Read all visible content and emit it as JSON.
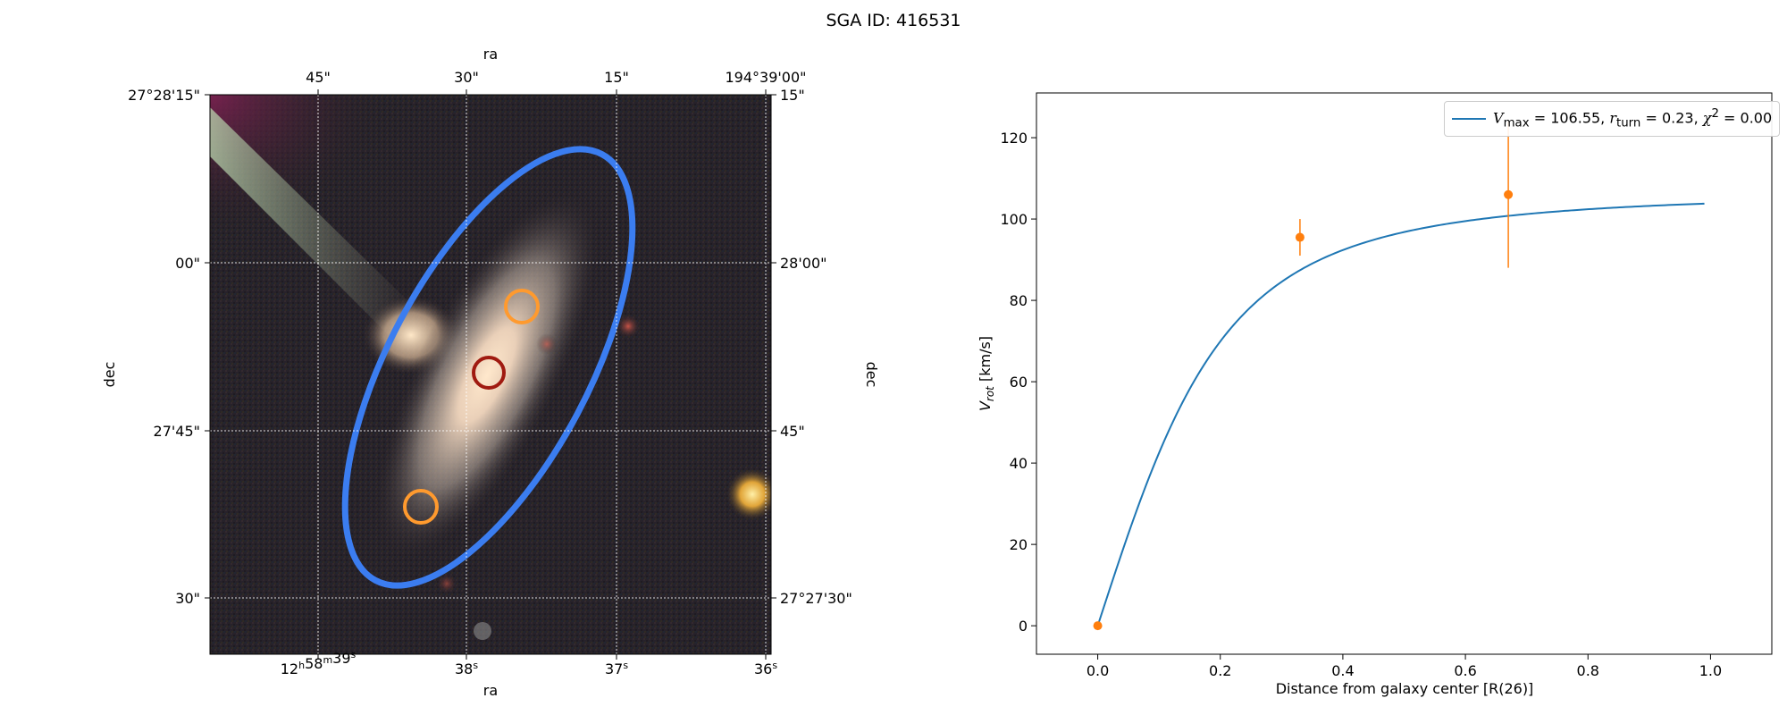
{
  "figure_title": "SGA ID: 416531",
  "colors": {
    "ellipse": "#3b7df0",
    "target_primary": "#a01a10",
    "target_secondary": "#ff9a2e",
    "curve": "#1f77b4",
    "points": "#ff7f0e"
  },
  "chart_data": [
    {
      "type": "image",
      "description_label": "sky cutout",
      "xlabel_top": "ra",
      "xlabel_bottom": "ra",
      "ylabel_left": "dec",
      "ylabel_right": "dec",
      "ra_top_ticks": [
        "45\"",
        "30\"",
        "15\"",
        "194°39'00\""
      ],
      "ra_bottom_ticks": [
        "12h58m39s",
        "38s",
        "37s",
        "36s"
      ],
      "dec_left_ticks": [
        "27°28'15\"",
        "00\"",
        "27'45\"",
        "30\""
      ],
      "dec_right_ticks": [
        "15\"",
        "28'00\"",
        "45\"",
        "27°27'30\""
      ],
      "grid": true,
      "markers": [
        {
          "kind": "center",
          "color": "#a01a10"
        },
        {
          "kind": "offset",
          "color": "#ff9a2e"
        },
        {
          "kind": "offset",
          "color": "#ff9a2e"
        }
      ]
    },
    {
      "type": "line",
      "xlabel": "Distance from galaxy center [R(26)]",
      "ylabel": "V_rot [km/s]",
      "xlim": [
        -0.1,
        1.1
      ],
      "ylim": [
        -7,
        131
      ],
      "xticks": [
        0.0,
        0.2,
        0.4,
        0.6,
        0.8,
        1.0
      ],
      "xtick_labels": [
        "0.0",
        "0.2",
        "0.4",
        "0.6",
        "0.8",
        "1.0"
      ],
      "yticks": [
        0,
        20,
        40,
        60,
        80,
        100,
        120
      ],
      "ytick_labels": [
        "0",
        "20",
        "40",
        "60",
        "80",
        "100",
        "120"
      ],
      "model": {
        "vmax": 106.55,
        "rturn": 0.23,
        "alpha": 2.0,
        "x_range": [
          0.0,
          0.99
        ]
      },
      "legend": {
        "placement": "upper right",
        "label_vmax": "106.55",
        "label_rturn": "0.23",
        "label_chi2": "0.00"
      },
      "points": [
        {
          "x": 0.0,
          "y": 0.0,
          "err": 0.0
        },
        {
          "x": 0.33,
          "y": 95.5,
          "err": 4.5
        },
        {
          "x": 0.67,
          "y": 106.0,
          "err": 18.0
        }
      ]
    }
  ]
}
